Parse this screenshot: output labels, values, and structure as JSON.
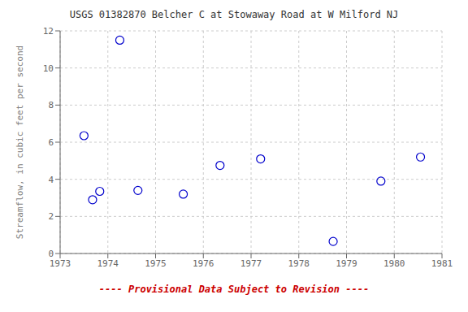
{
  "chart_data": {
    "type": "scatter",
    "title": "USGS 01382870 Belcher C at Stowaway Road at W Milford NJ",
    "ylabel": "Streamflow, in cubic feet per second",
    "x": [
      1973.5,
      1973.68,
      1973.83,
      1974.25,
      1974.63,
      1975.58,
      1976.35,
      1977.2,
      1978.72,
      1979.72,
      1980.55
    ],
    "values": [
      6.35,
      2.9,
      3.35,
      11.5,
      3.4,
      3.2,
      4.75,
      5.1,
      0.65,
      3.9,
      5.2
    ],
    "color": "#0000cc",
    "marker": "circle",
    "xlim": [
      1973,
      1981
    ],
    "ylim": [
      0,
      12
    ],
    "xticks": [
      1973,
      1974,
      1975,
      1976,
      1977,
      1978,
      1979,
      1980,
      1981
    ],
    "yticks": [
      0,
      2,
      4,
      6,
      8,
      10,
      12
    ],
    "grid": true,
    "annotations": [
      {
        "text": "---- Provisional Data Subject to Revision ----",
        "color": "#cc0000"
      }
    ]
  }
}
